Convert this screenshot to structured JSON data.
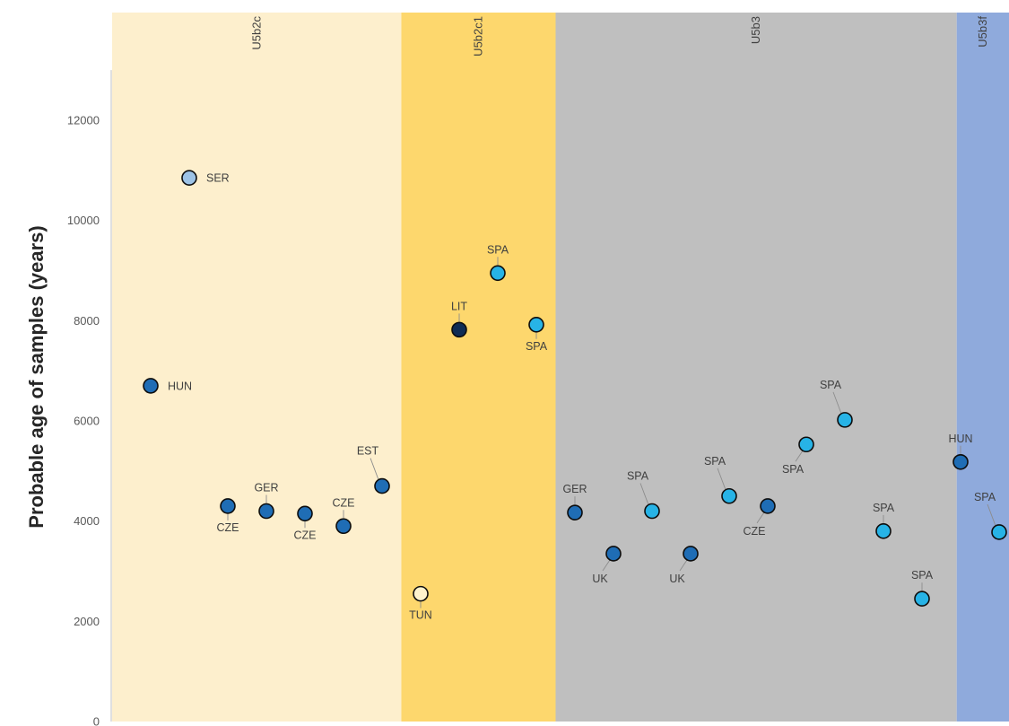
{
  "chart_data": {
    "type": "scatter",
    "ylabel": "Probable age of samples (years)",
    "ylim": [
      0,
      13000
    ],
    "yticks": [
      0,
      2000,
      4000,
      6000,
      8000,
      10000,
      12000
    ],
    "grid": false,
    "bands": [
      {
        "label": "U5b2c",
        "x_start": 0,
        "x_end": 7.5,
        "color": "#fdefcd"
      },
      {
        "label": "U5b2c1",
        "x_start": 7.5,
        "x_end": 11.5,
        "color": "#fdd76d"
      },
      {
        "label": "U5b3",
        "x_start": 11.5,
        "x_end": 21.9,
        "color": "#bfbfbf"
      },
      {
        "label": "U5b3f",
        "x_start": 21.9,
        "x_end": 23.5,
        "color": "#8faadc"
      }
    ],
    "points": [
      {
        "label": "HUN",
        "x": 1,
        "y": 6700,
        "color": "#1f6db5",
        "pos": "right"
      },
      {
        "label": "SER",
        "x": 2,
        "y": 10850,
        "color": "#9dc3e6",
        "pos": "right"
      },
      {
        "label": "CZE",
        "x": 3,
        "y": 4300,
        "color": "#1f6db5",
        "pos": "below"
      },
      {
        "label": "GER",
        "x": 4,
        "y": 4200,
        "color": "#1f6db5",
        "pos": "above"
      },
      {
        "label": "CZE",
        "x": 5,
        "y": 4150,
        "color": "#1f6db5",
        "pos": "below"
      },
      {
        "label": "CZE",
        "x": 6,
        "y": 3900,
        "color": "#1f6db5",
        "pos": "above"
      },
      {
        "label": "EST",
        "x": 7,
        "y": 4700,
        "color": "#1f6db5",
        "pos": "above-left"
      },
      {
        "label": "TUN",
        "x": 8,
        "y": 2550,
        "color": "#fff3cc",
        "pos": "below"
      },
      {
        "label": "LIT",
        "x": 9,
        "y": 7820,
        "color": "#0f2c54",
        "pos": "above"
      },
      {
        "label": "SPA",
        "x": 10,
        "y": 8950,
        "color": "#27b3e6",
        "pos": "above"
      },
      {
        "label": "SPA",
        "x": 11,
        "y": 7920,
        "color": "#27b3e6",
        "pos": "below"
      },
      {
        "label": "GER",
        "x": 12,
        "y": 4170,
        "color": "#1f6db5",
        "pos": "above"
      },
      {
        "label": "UK",
        "x": 13,
        "y": 3350,
        "color": "#1f6db5",
        "pos": "below-left"
      },
      {
        "label": "SPA",
        "x": 14,
        "y": 4200,
        "color": "#27b3e6",
        "pos": "above-left"
      },
      {
        "label": "UK",
        "x": 15,
        "y": 3350,
        "color": "#1f6db5",
        "pos": "below-left"
      },
      {
        "label": "SPA",
        "x": 16,
        "y": 4500,
        "color": "#27b3e6",
        "pos": "above-left"
      },
      {
        "label": "CZE",
        "x": 17,
        "y": 4300,
        "color": "#1f6db5",
        "pos": "below-left"
      },
      {
        "label": "SPA",
        "x": 18,
        "y": 5530,
        "color": "#27b3e6",
        "pos": "below-left"
      },
      {
        "label": "SPA",
        "x": 19,
        "y": 6020,
        "color": "#27b3e6",
        "pos": "above-left"
      },
      {
        "label": "SPA",
        "x": 20,
        "y": 3800,
        "color": "#27b3e6",
        "pos": "above"
      },
      {
        "label": "SPA",
        "x": 21,
        "y": 2450,
        "color": "#27b3e6",
        "pos": "above"
      },
      {
        "label": "HUN",
        "x": 22,
        "y": 5180,
        "color": "#1f6db5",
        "pos": "above"
      },
      {
        "label": "SPA",
        "x": 23,
        "y": 3780,
        "color": "#27b3e6",
        "pos": "above-left"
      }
    ]
  }
}
